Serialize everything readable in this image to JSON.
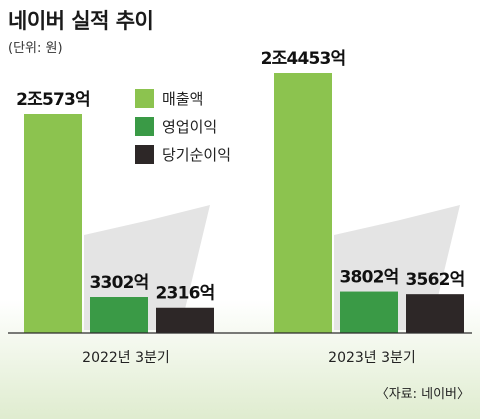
{
  "chart_data": {
    "type": "bar",
    "title": "네이버 실적 추이",
    "subtitle": "(단위: 원)",
    "source": "〈자료: 네이버〉",
    "categories": [
      "2022년 3분기",
      "2023년 3분기"
    ],
    "series": [
      {
        "name": "매출액",
        "color": "#8cc34f",
        "values": [
          20573,
          24453
        ],
        "labels": [
          "2조573억",
          "2조4453억"
        ]
      },
      {
        "name": "영업이익",
        "color": "#3a9a46",
        "values": [
          3302,
          3802
        ],
        "labels": [
          "3302억",
          "3802억"
        ]
      },
      {
        "name": "당기순이익",
        "color": "#2d2727",
        "values": [
          2316,
          3562
        ],
        "labels": [
          "2316억",
          "3562억"
        ]
      }
    ],
    "unit": "억원"
  }
}
